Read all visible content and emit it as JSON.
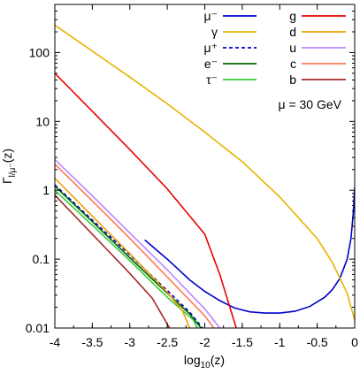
{
  "chart_data": {
    "type": "line",
    "xlabel": "log10(z)",
    "ylabel": "Γl/μ⁻(z)",
    "annotation": "μ = 30 GeV",
    "xlim": [
      -4,
      0
    ],
    "ylim": [
      0.01,
      500
    ],
    "yscale": "log",
    "grid": false,
    "legend_position": "top-right",
    "x_ticks": [
      "-4",
      "-3.5",
      "-3",
      "-2.5",
      "-2",
      "-1.5",
      "-1",
      "-0.5",
      "0"
    ],
    "y_ticks": [
      "0.01",
      "0.1",
      "1",
      "10",
      "100"
    ],
    "series": [
      {
        "name": "μ⁻",
        "color": "#0000cc",
        "dash": false,
        "points": [
          [
            -2.8,
            0.19
          ],
          [
            -2.5,
            0.1
          ],
          [
            -2.2,
            0.05
          ],
          [
            -2,
            0.034
          ],
          [
            -1.8,
            0.025
          ],
          [
            -1.6,
            0.0195
          ],
          [
            -1.4,
            0.0172
          ],
          [
            -1.2,
            0.0165
          ],
          [
            -1.0,
            0.0165
          ],
          [
            -0.8,
            0.0175
          ],
          [
            -0.6,
            0.0205
          ],
          [
            -0.4,
            0.028
          ],
          [
            -0.3,
            0.036
          ],
          [
            -0.2,
            0.052
          ],
          [
            -0.1,
            0.1
          ],
          [
            -0.05,
            0.2
          ],
          [
            -0.02,
            0.45
          ],
          [
            0,
            1.1
          ]
        ]
      },
      {
        "name": "γ",
        "color": "#e6b400",
        "dash": false,
        "points": [
          [
            -4,
            250
          ],
          [
            -3.5,
            105
          ],
          [
            -3,
            44
          ],
          [
            -2.5,
            18
          ],
          [
            -2,
            7
          ],
          [
            -1.5,
            2.6
          ],
          [
            -1,
            0.8
          ],
          [
            -0.5,
            0.2
          ],
          [
            -0.3,
            0.09
          ],
          [
            -0.1,
            0.032
          ],
          [
            0,
            0.013
          ]
        ]
      },
      {
        "name": "μ⁺",
        "color": "#0000cc",
        "dash": true,
        "points": [
          [
            -4,
            1.2
          ],
          [
            -3.5,
            0.37
          ],
          [
            -3,
            0.115
          ],
          [
            -2.5,
            0.035
          ],
          [
            -2.2,
            0.017
          ],
          [
            -2.03,
            0.01
          ]
        ]
      },
      {
        "name": "e⁻",
        "color": "#006400",
        "dash": false,
        "points": [
          [
            -4,
            1.15
          ],
          [
            -3.5,
            0.35
          ],
          [
            -3,
            0.105
          ],
          [
            -2.5,
            0.032
          ],
          [
            -2.2,
            0.016
          ],
          [
            -2.05,
            0.01
          ]
        ]
      },
      {
        "name": "τ⁻",
        "color": "#33cc33",
        "dash": false,
        "points": [
          [
            -4,
            1.0
          ],
          [
            -3.5,
            0.31
          ],
          [
            -3,
            0.095
          ],
          [
            -2.5,
            0.028
          ],
          [
            -2.15,
            0.013
          ],
          [
            -2.1,
            0.01
          ]
        ]
      },
      {
        "name": "g",
        "color": "#e60000",
        "dash": false,
        "points": [
          [
            -4,
            50
          ],
          [
            -3.5,
            14
          ],
          [
            -3,
            3.9
          ],
          [
            -2.5,
            1.05
          ],
          [
            -2,
            0.23
          ],
          [
            -1.8,
            0.06
          ],
          [
            -1.58,
            0.01
          ]
        ]
      },
      {
        "name": "d",
        "color": "#f0a000",
        "dash": false,
        "points": [
          [
            -4,
            1.5
          ],
          [
            -3.5,
            0.42
          ],
          [
            -3,
            0.12
          ],
          [
            -2.5,
            0.033
          ],
          [
            -2.3,
            0.018
          ],
          [
            -2.2,
            0.01
          ]
        ]
      },
      {
        "name": "u",
        "color": "#bb88ff",
        "dash": false,
        "points": [
          [
            -4,
            2.8
          ],
          [
            -3.5,
            0.83
          ],
          [
            -3,
            0.24
          ],
          [
            -2.5,
            0.07
          ],
          [
            -2,
            0.019
          ],
          [
            -1.8,
            0.01
          ]
        ]
      },
      {
        "name": "c",
        "color": "#ff7a55",
        "dash": false,
        "points": [
          [
            -4,
            2.4
          ],
          [
            -3.5,
            0.7
          ],
          [
            -3,
            0.2
          ],
          [
            -2.5,
            0.055
          ],
          [
            -2,
            0.015
          ],
          [
            -1.88,
            0.01
          ]
        ]
      },
      {
        "name": "b",
        "color": "#a52a2a",
        "dash": false,
        "points": [
          [
            -4,
            0.85
          ],
          [
            -3.5,
            0.23
          ],
          [
            -3,
            0.062
          ],
          [
            -2.7,
            0.027
          ],
          [
            -2.47,
            0.01
          ]
        ]
      }
    ]
  }
}
